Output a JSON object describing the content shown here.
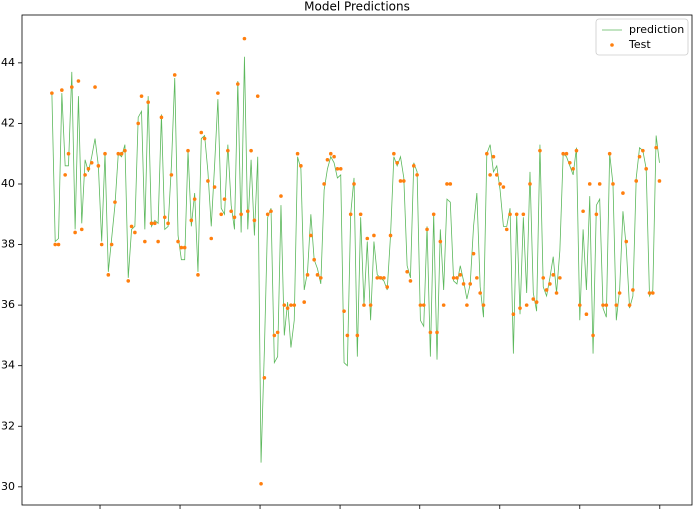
{
  "chart_data": {
    "type": "line_scatter",
    "title": "Model Predictions",
    "x": [
      0,
      1,
      2,
      3,
      4,
      5,
      6,
      7,
      8,
      9,
      10,
      11,
      12,
      13,
      14,
      15,
      16,
      17,
      18,
      19,
      20,
      21,
      22,
      23,
      24,
      25,
      26,
      27,
      28,
      29,
      30,
      31,
      32,
      33,
      34,
      35,
      36,
      37,
      38,
      39,
      40,
      41,
      42,
      43,
      44,
      45,
      46,
      47,
      48,
      49,
      50,
      51,
      52,
      53,
      54,
      55,
      56,
      57,
      58,
      59,
      60,
      61,
      62,
      63,
      64,
      65,
      66,
      67,
      68,
      69,
      70,
      71,
      72,
      73,
      74,
      75,
      76,
      77,
      78,
      79,
      80,
      81,
      82,
      83,
      84,
      85,
      86,
      87,
      88,
      89,
      90,
      91,
      92,
      93,
      94,
      95,
      96,
      97,
      98,
      99,
      100,
      101,
      102,
      103,
      104,
      105,
      106,
      107,
      108,
      109,
      110,
      111,
      112,
      113,
      114,
      115,
      116,
      117,
      118,
      119,
      120,
      121,
      122,
      123,
      124,
      125,
      126,
      127,
      128,
      129,
      130,
      131,
      132,
      133,
      134,
      135,
      136,
      137,
      138,
      139,
      140,
      141,
      142,
      143,
      144,
      145,
      146,
      147,
      148,
      149,
      150,
      151,
      152,
      153,
      154,
      155,
      156,
      157,
      158,
      159,
      160,
      161,
      162,
      163,
      164,
      165,
      166,
      167,
      168,
      169,
      170,
      171,
      172,
      173,
      174,
      175,
      176,
      177,
      178,
      179,
      180,
      181,
      182,
      183
    ],
    "series": [
      {
        "name": "prediction",
        "color": "#5cb85c",
        "style": "line",
        "values": [
          43.0,
          38.1,
          38.2,
          43.0,
          40.6,
          40.6,
          43.7,
          38.5,
          42.9,
          38.7,
          40.8,
          40.4,
          40.9,
          41.5,
          40.6,
          38.1,
          41.0,
          37.1,
          38.2,
          39.3,
          41.0,
          40.9,
          41.3,
          36.9,
          38.5,
          38.6,
          42.2,
          42.4,
          38.5,
          42.9,
          38.6,
          38.8,
          38.7,
          42.3,
          38.5,
          38.6,
          40.6,
          43.5,
          38.3,
          37.5,
          37.5,
          41.1,
          38.6,
          39.7,
          37.1,
          41.5,
          41.6,
          40.4,
          38.6,
          40.6,
          42.8,
          39.2,
          39.0,
          41.3,
          39.3,
          38.5,
          43.4,
          38.4,
          44.2,
          38.5,
          40.8,
          38.3,
          40.9,
          30.8,
          34.5,
          38.9,
          39.2,
          34.1,
          34.3,
          39.3,
          35.0,
          36.1,
          34.6,
          35.5,
          40.9,
          40.5,
          36.5,
          37.1,
          39.0,
          37.5,
          37.2,
          36.7,
          39.8,
          40.5,
          40.9,
          40.7,
          40.2,
          40.3,
          34.1,
          34.0,
          39.0,
          40.2,
          34.3,
          38.9,
          36.0,
          38.1,
          35.5,
          38.1,
          37.0,
          36.9,
          36.8,
          36.5,
          38.3,
          40.9,
          40.6,
          40.9,
          40.2,
          37.3,
          36.9,
          40.7,
          40.4,
          35.5,
          35.3,
          38.6,
          34.3,
          39.0,
          34.2,
          38.5,
          36.5,
          39.5,
          39.4,
          36.8,
          36.7,
          37.3,
          36.8,
          36.2,
          36.7,
          38.6,
          39.7,
          36.6,
          35.6,
          41.0,
          41.3,
          40.4,
          40.6,
          39.8,
          38.6,
          38.6,
          39.2,
          34.4,
          39.0,
          35.7,
          38.9,
          36.4,
          40.4,
          36.4,
          35.8,
          41.3,
          36.6,
          36.3,
          36.9,
          37.6,
          36.4,
          37.8,
          41.0,
          40.9,
          40.6,
          40.3,
          41.2,
          35.5,
          38.5,
          36.5,
          39.6,
          34.4,
          39.3,
          39.5,
          35.9,
          35.6,
          41.0,
          40.0,
          35.5,
          36.5,
          39.1,
          37.9,
          35.9,
          36.3,
          40.2,
          41.2,
          41.1,
          40.5,
          36.3,
          36.5,
          41.6,
          40.7
        ]
      },
      {
        "name": "Test",
        "color": "#ff7f0e",
        "style": "dots",
        "values": [
          43.0,
          38,
          38,
          43.1,
          40.3,
          41,
          43.2,
          38.4,
          43.4,
          38.5,
          40.3,
          40.5,
          40.7,
          43.2,
          40.6,
          38,
          41,
          37,
          38,
          39.4,
          41,
          41,
          41.1,
          36.8,
          38.6,
          38.4,
          42,
          42.9,
          38.1,
          42.7,
          38.7,
          38.7,
          38.1,
          42.2,
          38.9,
          38.7,
          40.3,
          43.6,
          38.1,
          37.9,
          37.9,
          41.1,
          38.8,
          39.5,
          37,
          41.7,
          41.5,
          40.1,
          38.2,
          39.9,
          43,
          39,
          39.5,
          41.1,
          39.1,
          38.9,
          43.3,
          39,
          44.8,
          39.1,
          41.1,
          38.8,
          42.9,
          30.1,
          33.6,
          39,
          39.1,
          35,
          35.1,
          39.6,
          36,
          35.9,
          36,
          36,
          41,
          40.6,
          36.1,
          37,
          38.3,
          37.5,
          37,
          36.9,
          40,
          40.8,
          41,
          40.9,
          40.5,
          40.5,
          35.8,
          35,
          39,
          40,
          35,
          39,
          36,
          38.2,
          36,
          38.3,
          36.9,
          36.9,
          36.9,
          36.6,
          38.3,
          41,
          40.7,
          40.1,
          40.1,
          37.1,
          36.8,
          40.6,
          40.3,
          36,
          36,
          38.5,
          35.1,
          39,
          35.1,
          38.1,
          36,
          40,
          40,
          36.9,
          36.9,
          37,
          36.7,
          36,
          36.7,
          37.7,
          36.9,
          36.4,
          36,
          41,
          40.3,
          40.9,
          40.3,
          40,
          39.9,
          38.5,
          39,
          35.7,
          39,
          35.9,
          39,
          36,
          40,
          36.2,
          36.1,
          41.1,
          36.9,
          36.5,
          36.7,
          37,
          36.4,
          36.9,
          41,
          41,
          40.7,
          40.5,
          41.1,
          36,
          39.1,
          35.7,
          40,
          35,
          39,
          40,
          36,
          36,
          41,
          40,
          36,
          36.4,
          39.7,
          38.1,
          36,
          36.5,
          40.1,
          40.9,
          41.1,
          40.5,
          36.4,
          36.4,
          41.2,
          40.1
        ]
      }
    ],
    "xlim": [
      -9,
      192.8
    ],
    "xticks": [
      14.5,
      38.6,
      62.7,
      86.8,
      110.8,
      134.9,
      159,
      183.1
    ],
    "ylim": [
      29.4,
      45.58
    ],
    "yticks": [
      30,
      32,
      34,
      36,
      38,
      40,
      42,
      44
    ],
    "legend": "upper right",
    "grid": false
  }
}
